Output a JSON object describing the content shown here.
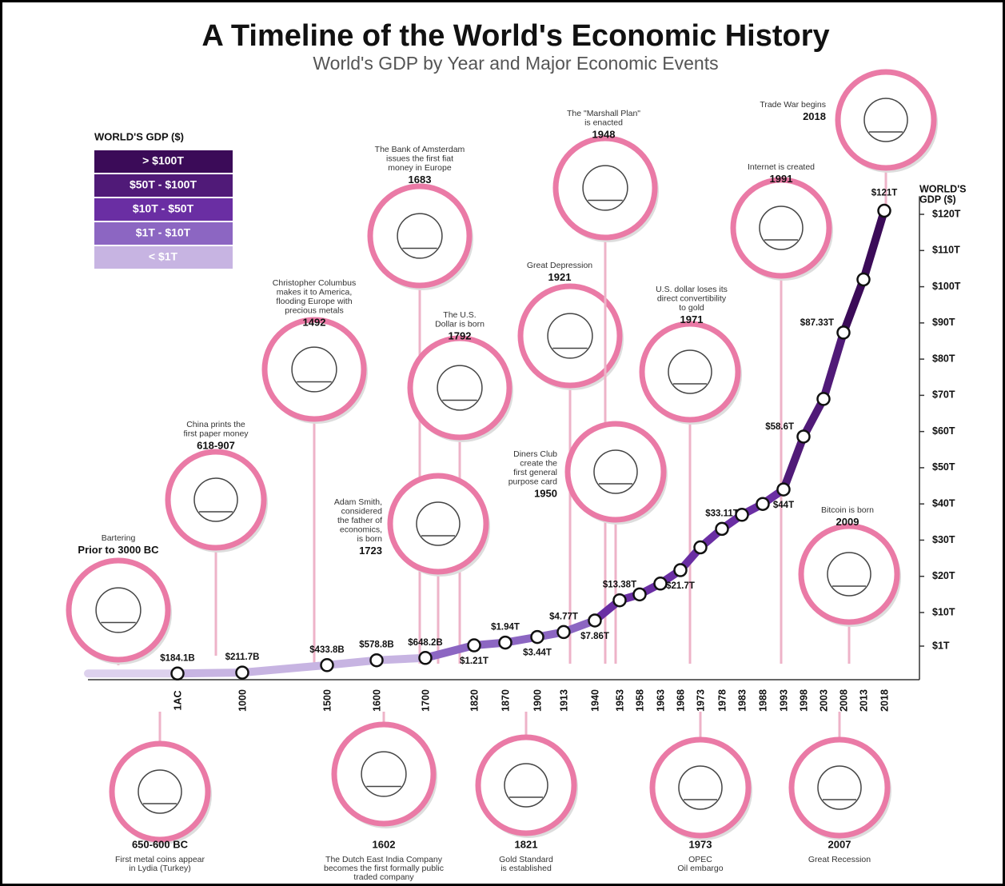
{
  "chart_data": {
    "type": "line",
    "title": "A Timeline of the World's Economic History",
    "subtitle": "World's GDP by Year and Major Economic Events",
    "y_label": [
      "WORLD'S",
      "GDP ($)"
    ],
    "legend_title": "WORLD'S GDP ($)",
    "color_scale": [
      {
        "label": "> $100T",
        "color": "#3b0b58",
        "min": 100
      },
      {
        "label": "$50T - $100T",
        "color": "#501a78",
        "min": 50
      },
      {
        "label": "$10T - $50T",
        "color": "#6a2ea3",
        "min": 10
      },
      {
        "label": "$1T - $10T",
        "color": "#8c66c2",
        "min": 1
      },
      {
        "label": "< $1T",
        "color": "#c7b4e2",
        "min": 0
      }
    ],
    "categories": [
      "1AC",
      "1000",
      "1500",
      "1600",
      "1700",
      "1820",
      "1870",
      "1900",
      "1913",
      "1940",
      "1953",
      "1958",
      "1963",
      "1968",
      "1973",
      "1978",
      "1983",
      "1988",
      "1993",
      "1998",
      "2003",
      "2008",
      "2013",
      "2018"
    ],
    "values": [
      0.1841,
      0.2117,
      0.4338,
      0.5788,
      0.6482,
      1.21,
      1.94,
      3.44,
      4.77,
      7.86,
      13.38,
      15,
      18,
      21.7,
      28,
      33.11,
      37,
      40,
      44,
      58.6,
      69,
      87.33,
      102,
      121
    ],
    "value_labels": [
      "$184.1B",
      "$211.7B",
      "$433.8B",
      "$578.8B",
      "$648.2B",
      "$1.21T",
      "$1.94T",
      "$3.44T",
      "$4.77T",
      "$7.86T",
      "$13.38T",
      null,
      null,
      "$21.7T",
      null,
      "$33.11T",
      null,
      null,
      "$44T",
      "$58.6T",
      null,
      "$87.33T",
      null,
      "$121T"
    ],
    "ylim": [
      0,
      125
    ],
    "yticks": [
      {
        "value": 1,
        "label": "$1T"
      },
      {
        "value": 10,
        "label": "$10T"
      },
      {
        "value": 20,
        "label": "$20T"
      },
      {
        "value": 30,
        "label": "$30T"
      },
      {
        "value": 40,
        "label": "$40T"
      },
      {
        "value": 50,
        "label": "$50T"
      },
      {
        "value": 60,
        "label": "$60T"
      },
      {
        "value": 70,
        "label": "$70T"
      },
      {
        "value": 80,
        "label": "$80T"
      },
      {
        "value": 90,
        "label": "$90T"
      },
      {
        "value": 100,
        "label": "$100T"
      },
      {
        "value": 110,
        "label": "$110T"
      },
      {
        "value": 120,
        "label": "$120T"
      }
    ]
  },
  "events": [
    {
      "text": [
        "Bartering"
      ],
      "year": "Prior to 3000 BC"
    },
    {
      "text": [
        "China prints the",
        "first paper money"
      ],
      "year": "618-907"
    },
    {
      "text": [
        "Christopher Columbus",
        "makes it to America,",
        "flooding Europe with",
        "precious metals"
      ],
      "year": "1492"
    },
    {
      "text": [
        "The Bank of Amsterdam",
        "issues the first fiat",
        "money in Europe"
      ],
      "year": "1683"
    },
    {
      "text": [
        "The U.S.",
        "Dollar is born"
      ],
      "year": "1792"
    },
    {
      "text": [
        "Adam Smith,",
        "considered",
        "the father of",
        "economics,",
        "is born"
      ],
      "year": "1723"
    },
    {
      "text": [
        "Great Depression"
      ],
      "year": "1921"
    },
    {
      "text": [
        "The \"Marshall Plan\"",
        "is enacted"
      ],
      "year": "1948"
    },
    {
      "text": [
        "Diners Club",
        "create the",
        "first general",
        "purpose card"
      ],
      "year": "1950"
    },
    {
      "text": [
        "U.S. dollar loses its",
        "direct convertibility",
        "to gold"
      ],
      "year": "1971"
    },
    {
      "text": [
        "Internet is created"
      ],
      "year": "1991"
    },
    {
      "text": [
        "Trade War begins"
      ],
      "year": "2018"
    },
    {
      "text": [
        "Bitcoin is born"
      ],
      "year": "2009"
    },
    {
      "text": [
        "First metal coins appear",
        "in Lydia (Turkey)"
      ],
      "year": "650-600 BC"
    },
    {
      "text": [
        "The Dutch East India Company",
        "becomes the first formally public",
        "traded company"
      ],
      "year": "1602"
    },
    {
      "text": [
        "Gold Standard",
        "is established"
      ],
      "year": "1821"
    },
    {
      "text": [
        "OPEC",
        "Oil embargo"
      ],
      "year": "1973"
    },
    {
      "text": [
        "Great Recession"
      ],
      "year": "2007"
    }
  ]
}
